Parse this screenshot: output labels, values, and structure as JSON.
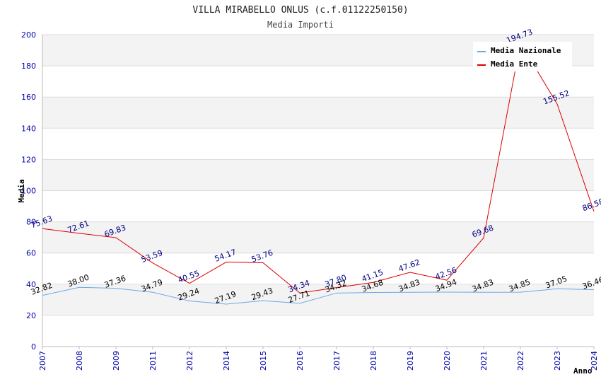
{
  "chart_data": {
    "type": "line",
    "title": "VILLA MIRABELLO ONLUS (c.f.01122250150)",
    "subtitle": "Media Importi",
    "xlabel": "Anno",
    "ylabel": "Media",
    "ylim": [
      0,
      200
    ],
    "yticks": [
      "0",
      "20",
      "40",
      "60",
      "80",
      "100",
      "120",
      "140",
      "160",
      "180",
      "200"
    ],
    "grid": true,
    "legend_position": "top-right",
    "categories": [
      "2007",
      "2008",
      "2009",
      "2011",
      "2012",
      "2014",
      "2015",
      "2016",
      "2017",
      "2018",
      "2019",
      "2020",
      "2021",
      "2022",
      "2023",
      "2024"
    ],
    "series": [
      {
        "name": "Media Nazionale",
        "color": "#6ea6e8",
        "label_color": "#000000",
        "values": [
          32.82,
          38.0,
          37.36,
          34.79,
          29.24,
          27.19,
          29.43,
          27.71,
          34.32,
          34.68,
          34.83,
          34.94,
          34.83,
          34.85,
          37.05,
          36.46
        ],
        "labels": [
          "32.82",
          "38.00",
          "37.36",
          "34.79",
          "29.24",
          "27.19",
          "29.43",
          "27.71",
          "34.32",
          "34.68",
          "34.83",
          "34.94",
          "34.83",
          "34.85",
          "37.05",
          "36.46"
        ]
      },
      {
        "name": "Media Ente",
        "color": "#dd0000",
        "label_color": "#000080",
        "values": [
          75.63,
          72.61,
          69.83,
          53.59,
          40.55,
          54.17,
          53.76,
          34.34,
          37.8,
          41.15,
          47.62,
          42.56,
          69.68,
          194.73,
          155.52,
          86.58
        ],
        "labels": [
          "75.63",
          "72.61",
          "69.83",
          "53.59",
          "40.55",
          "54.17",
          "53.76",
          "34.34",
          "37.80",
          "41.15",
          "47.62",
          "42.56",
          "69.68",
          "194.73",
          "155.52",
          "86.58"
        ]
      }
    ]
  }
}
